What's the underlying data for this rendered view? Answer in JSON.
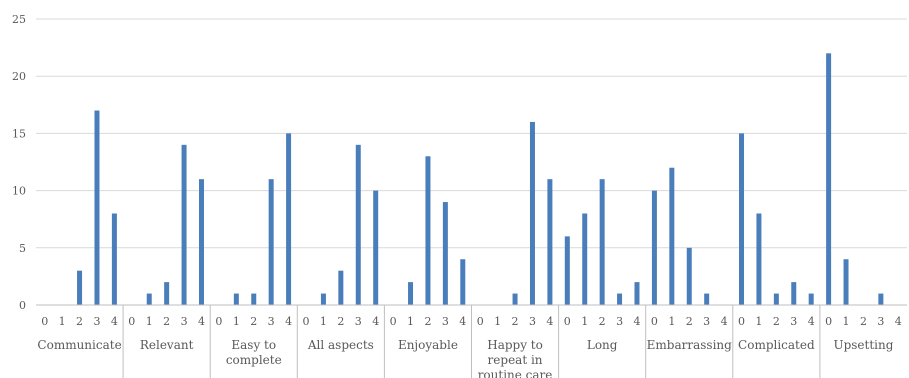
{
  "chart_data": {
    "type": "bar",
    "ylim": [
      0,
      25
    ],
    "yticks": [
      0,
      5,
      10,
      15,
      20,
      25
    ],
    "grid": true,
    "sub_categories": [
      "0",
      "1",
      "2",
      "3",
      "4"
    ],
    "groups": [
      {
        "label": [
          "Communicate"
        ],
        "values": [
          0,
          0,
          3,
          17,
          8
        ]
      },
      {
        "label": [
          "Relevant"
        ],
        "values": [
          0,
          1,
          2,
          14,
          11
        ]
      },
      {
        "label": [
          "Easy to",
          "complete"
        ],
        "values": [
          0,
          1,
          1,
          11,
          15
        ]
      },
      {
        "label": [
          "All aspects"
        ],
        "values": [
          0,
          1,
          3,
          14,
          10
        ]
      },
      {
        "label": [
          "Enjoyable"
        ],
        "values": [
          0,
          2,
          13,
          9,
          4
        ]
      },
      {
        "label": [
          "Happy to",
          "repeat in",
          "routine care"
        ],
        "values": [
          0,
          0,
          1,
          16,
          11
        ]
      },
      {
        "label": [
          "Long"
        ],
        "values": [
          6,
          8,
          11,
          1,
          2
        ]
      },
      {
        "label": [
          "Embarrassing"
        ],
        "values": [
          10,
          12,
          5,
          1,
          0
        ]
      },
      {
        "label": [
          "Complicated"
        ],
        "values": [
          15,
          8,
          1,
          2,
          1
        ]
      },
      {
        "label": [
          "Upsetting"
        ],
        "values": [
          22,
          4,
          0,
          1,
          0
        ]
      }
    ]
  }
}
